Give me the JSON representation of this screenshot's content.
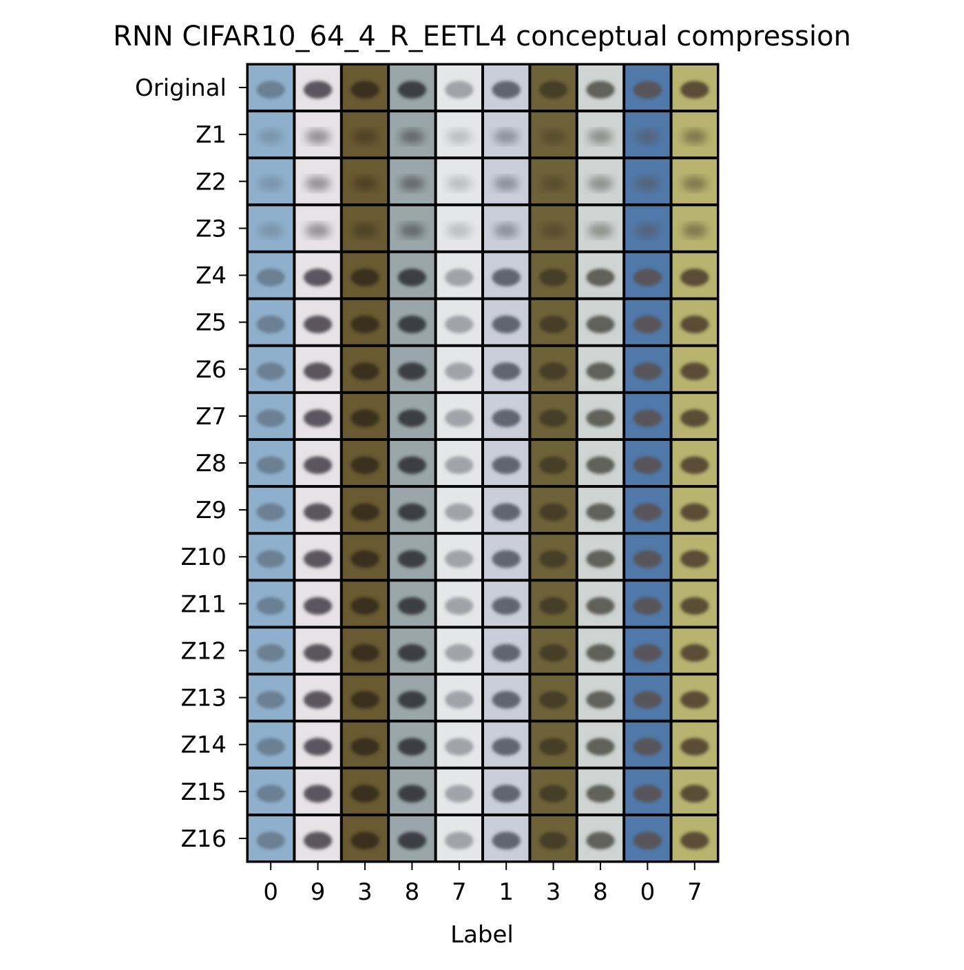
{
  "chart_data": {
    "type": "image-grid",
    "title": "RNN CIFAR10_64_4_R_EETL4 conceptual compression",
    "xlabel": "Label",
    "ylabel": "",
    "row_labels": [
      "Original",
      "Z1",
      "Z2",
      "Z3",
      "Z4",
      "Z5",
      "Z6",
      "Z7",
      "Z8",
      "Z9",
      "Z10",
      "Z11",
      "Z12",
      "Z13",
      "Z14",
      "Z15",
      "Z16"
    ],
    "column_labels": [
      "0",
      "9",
      "3",
      "8",
      "7",
      "1",
      "3",
      "8",
      "0",
      "7"
    ],
    "column_colors": [
      {
        "bg": "#8fb0cc",
        "fg": "#5e6f80"
      },
      {
        "bg": "#e6e2e6",
        "fg": "#2e2530"
      },
      {
        "bg": "#6a5a32",
        "fg": "#2a2418"
      },
      {
        "bg": "#9aa6aa",
        "fg": "#1c1f22"
      },
      {
        "bg": "#e4e6e8",
        "fg": "#8a8f94"
      },
      {
        "bg": "#c9ced8",
        "fg": "#3c4250"
      },
      {
        "bg": "#6e6238",
        "fg": "#3a3220"
      },
      {
        "bg": "#cfd3d2",
        "fg": "#3a3a30"
      },
      {
        "bg": "#5079aa",
        "fg": "#5a4a40"
      },
      {
        "bg": "#b8b470",
        "fg": "#3a2a20"
      }
    ]
  }
}
